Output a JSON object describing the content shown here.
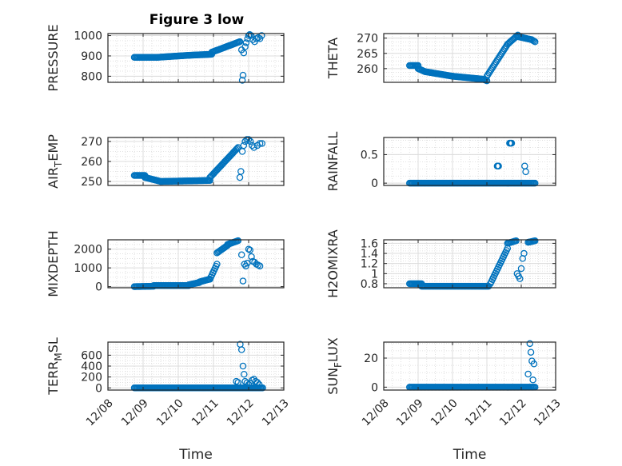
{
  "figure": {
    "title": "Figure 3 low",
    "marker_color": "#0072BD"
  },
  "chart_data": [
    {
      "type": "scatter",
      "id": "pressure",
      "ylabel": "PRESSURE",
      "ylabel_sub": "",
      "ylim": [
        770,
        1010
      ],
      "yticks": [
        800,
        900,
        1000
      ],
      "ytick_labels": [
        "800",
        "900",
        "1000"
      ],
      "xticks_visible": false,
      "xlabel": "",
      "grid": true,
      "segments": [
        [
          8.75,
          9.4,
          893,
          893
        ],
        [
          9.4,
          10.3,
          893,
          903
        ],
        [
          10.3,
          10.95,
          903,
          908
        ],
        [
          10.95,
          11.75,
          918,
          970
        ]
      ],
      "points": [
        [
          11.8,
          930
        ],
        [
          11.82,
          780
        ],
        [
          11.84,
          805
        ],
        [
          11.86,
          915
        ],
        [
          11.9,
          945
        ],
        [
          11.93,
          965
        ],
        [
          11.97,
          985
        ],
        [
          12.0,
          1000
        ],
        [
          12.03,
          1005
        ],
        [
          12.07,
          1000
        ],
        [
          12.12,
          980
        ],
        [
          12.17,
          970
        ],
        [
          12.22,
          985
        ],
        [
          12.27,
          990
        ],
        [
          12.32,
          985
        ],
        [
          12.37,
          1000
        ]
      ]
    },
    {
      "type": "scatter",
      "id": "theta",
      "ylabel": "THETA",
      "ylabel_sub": "",
      "ylim": [
        255.5,
        271.5
      ],
      "yticks": [
        260,
        265,
        270
      ],
      "ytick_labels": [
        "260",
        "265",
        "270"
      ],
      "xticks_visible": false,
      "xlabel": "",
      "grid": true,
      "segments": [
        [
          8.75,
          9.0,
          261,
          261
        ],
        [
          9.0,
          9.2,
          260,
          259
        ],
        [
          9.2,
          10.0,
          259,
          257.5
        ],
        [
          10.0,
          10.9,
          257.5,
          256.5
        ],
        [
          10.9,
          11.0,
          256.5,
          256
        ],
        [
          11.0,
          11.6,
          257.5,
          268
        ],
        [
          11.6,
          11.9,
          268,
          271
        ],
        [
          11.9,
          12.3,
          270.5,
          269.5
        ],
        [
          12.3,
          12.4,
          269.5,
          268.8
        ]
      ],
      "points": []
    },
    {
      "type": "scatter",
      "id": "airtemp",
      "ylabel": "AIR",
      "ylabel_sub": "T",
      "ylabel_rest": "EMP",
      "ylim": [
        248,
        272
      ],
      "yticks": [
        250,
        260,
        270
      ],
      "ytick_labels": [
        "250",
        "260",
        "270"
      ],
      "xticks_visible": false,
      "xlabel": "",
      "grid": true,
      "segments": [
        [
          8.75,
          9.05,
          253,
          253
        ],
        [
          9.05,
          9.5,
          252,
          250
        ],
        [
          9.5,
          10.9,
          250,
          250.5
        ],
        [
          10.9,
          11.7,
          252,
          267
        ]
      ],
      "points": [
        [
          11.75,
          252
        ],
        [
          11.78,
          255
        ],
        [
          11.82,
          265
        ],
        [
          11.86,
          268
        ],
        [
          11.9,
          270
        ],
        [
          11.95,
          271
        ],
        [
          12.0,
          271
        ],
        [
          12.05,
          270
        ],
        [
          12.1,
          268
        ],
        [
          12.15,
          267
        ],
        [
          12.25,
          268
        ],
        [
          12.32,
          269
        ],
        [
          12.38,
          269
        ]
      ]
    },
    {
      "type": "scatter",
      "id": "rainfall",
      "ylabel": "RAINFALL",
      "ylabel_sub": "",
      "ylim": [
        -0.04,
        0.8
      ],
      "yticks": [
        0,
        0.5
      ],
      "ytick_labels": [
        "0",
        "0.5"
      ],
      "xticks_visible": false,
      "xlabel": "",
      "grid": true,
      "segments": [
        [
          8.75,
          12.4,
          0,
          0
        ]
      ],
      "points": [
        [
          11.3,
          0.3
        ],
        [
          11.32,
          0.3
        ],
        [
          11.34,
          0.3
        ],
        [
          11.66,
          0.7
        ],
        [
          11.68,
          0.7
        ],
        [
          11.7,
          0.7
        ],
        [
          11.72,
          0.7
        ],
        [
          12.1,
          0.3
        ],
        [
          12.13,
          0.2
        ]
      ]
    },
    {
      "type": "scatter",
      "id": "mixdepth",
      "ylabel": "MIXDEPTH",
      "ylabel_sub": "",
      "ylim": [
        -60,
        2500
      ],
      "yticks": [
        0,
        1000,
        2000
      ],
      "ytick_labels": [
        "0",
        "1000",
        "2000"
      ],
      "xticks_visible": false,
      "xlabel": "",
      "grid": true,
      "segments": [
        [
          8.75,
          9.3,
          0,
          20
        ],
        [
          9.3,
          10.3,
          60,
          60
        ],
        [
          10.3,
          10.6,
          100,
          220
        ],
        [
          10.6,
          10.9,
          250,
          400
        ],
        [
          10.9,
          11.1,
          400,
          1200
        ],
        [
          11.1,
          11.4,
          1800,
          2200
        ],
        [
          11.4,
          11.7,
          2250,
          2450
        ]
      ],
      "points": [
        [
          11.8,
          1700
        ],
        [
          11.84,
          300
        ],
        [
          11.88,
          1200
        ],
        [
          11.92,
          1100
        ],
        [
          11.96,
          1250
        ],
        [
          12.0,
          2000
        ],
        [
          12.04,
          1950
        ],
        [
          12.08,
          1600
        ],
        [
          12.12,
          1350
        ],
        [
          12.17,
          1300
        ],
        [
          12.22,
          1200
        ],
        [
          12.27,
          1150
        ],
        [
          12.32,
          1100
        ]
      ]
    },
    {
      "type": "scatter",
      "id": "h2omixra",
      "ylabel": "H2OMIXRA",
      "ylabel_sub": "",
      "ylim": [
        0.72,
        1.67
      ],
      "yticks": [
        0.8,
        1,
        1.2,
        1.4,
        1.6
      ],
      "ytick_labels": [
        "0.8",
        "1",
        "1.2",
        "1.4",
        "1.6"
      ],
      "xticks_visible": false,
      "xlabel": "",
      "grid": true,
      "segments": [
        [
          8.75,
          9.1,
          0.8,
          0.8
        ],
        [
          9.1,
          11.05,
          0.75,
          0.75
        ],
        [
          11.1,
          11.6,
          0.8,
          1.5
        ],
        [
          11.6,
          11.85,
          1.6,
          1.65
        ],
        [
          12.2,
          12.4,
          1.62,
          1.65
        ]
      ],
      "points": [
        [
          11.88,
          1.0
        ],
        [
          11.92,
          0.95
        ],
        [
          11.96,
          0.9
        ],
        [
          12.0,
          1.1
        ],
        [
          12.04,
          1.3
        ],
        [
          12.08,
          1.4
        ]
      ]
    },
    {
      "type": "scatter",
      "id": "terrmsl",
      "ylabel": "TERR",
      "ylabel_sub": "M",
      "ylabel_rest": "SL",
      "ylim": [
        -40,
        840
      ],
      "yticks": [
        0,
        200,
        400,
        600
      ],
      "ytick_labels": [
        "0",
        "200",
        "400",
        "600"
      ],
      "xticks": [
        "12/08",
        "12/09",
        "12/10",
        "12/11",
        "12/12",
        "12/13"
      ],
      "xticks_visible": true,
      "xlabel": "Time",
      "grid": true,
      "segments": [
        [
          8.75,
          12.4,
          0,
          0
        ]
      ],
      "points": [
        [
          11.65,
          120
        ],
        [
          11.7,
          100
        ],
        [
          11.76,
          800
        ],
        [
          11.8,
          700
        ],
        [
          11.84,
          400
        ],
        [
          11.87,
          250
        ],
        [
          11.9,
          120
        ],
        [
          11.95,
          90
        ],
        [
          12.0,
          60
        ],
        [
          12.05,
          80
        ],
        [
          12.1,
          140
        ],
        [
          12.15,
          160
        ],
        [
          12.2,
          120
        ],
        [
          12.25,
          100
        ],
        [
          12.3,
          60
        ]
      ]
    },
    {
      "type": "scatter",
      "id": "sunflux",
      "ylabel": "SUN",
      "ylabel_sub": "F",
      "ylabel_rest": "LUX",
      "ylim": [
        -2,
        31
      ],
      "yticks": [
        0,
        20
      ],
      "ytick_labels": [
        "0",
        "20"
      ],
      "xticks": [
        "12/08",
        "12/09",
        "12/10",
        "12/11",
        "12/12",
        "12/13"
      ],
      "xticks_visible": true,
      "xlabel": "Time",
      "grid": true,
      "segments": [
        [
          8.75,
          12.4,
          0,
          0
        ]
      ],
      "points": [
        [
          12.2,
          9
        ],
        [
          12.25,
          30
        ],
        [
          12.28,
          24
        ],
        [
          12.31,
          18
        ],
        [
          12.34,
          5
        ],
        [
          12.37,
          16
        ]
      ]
    }
  ]
}
